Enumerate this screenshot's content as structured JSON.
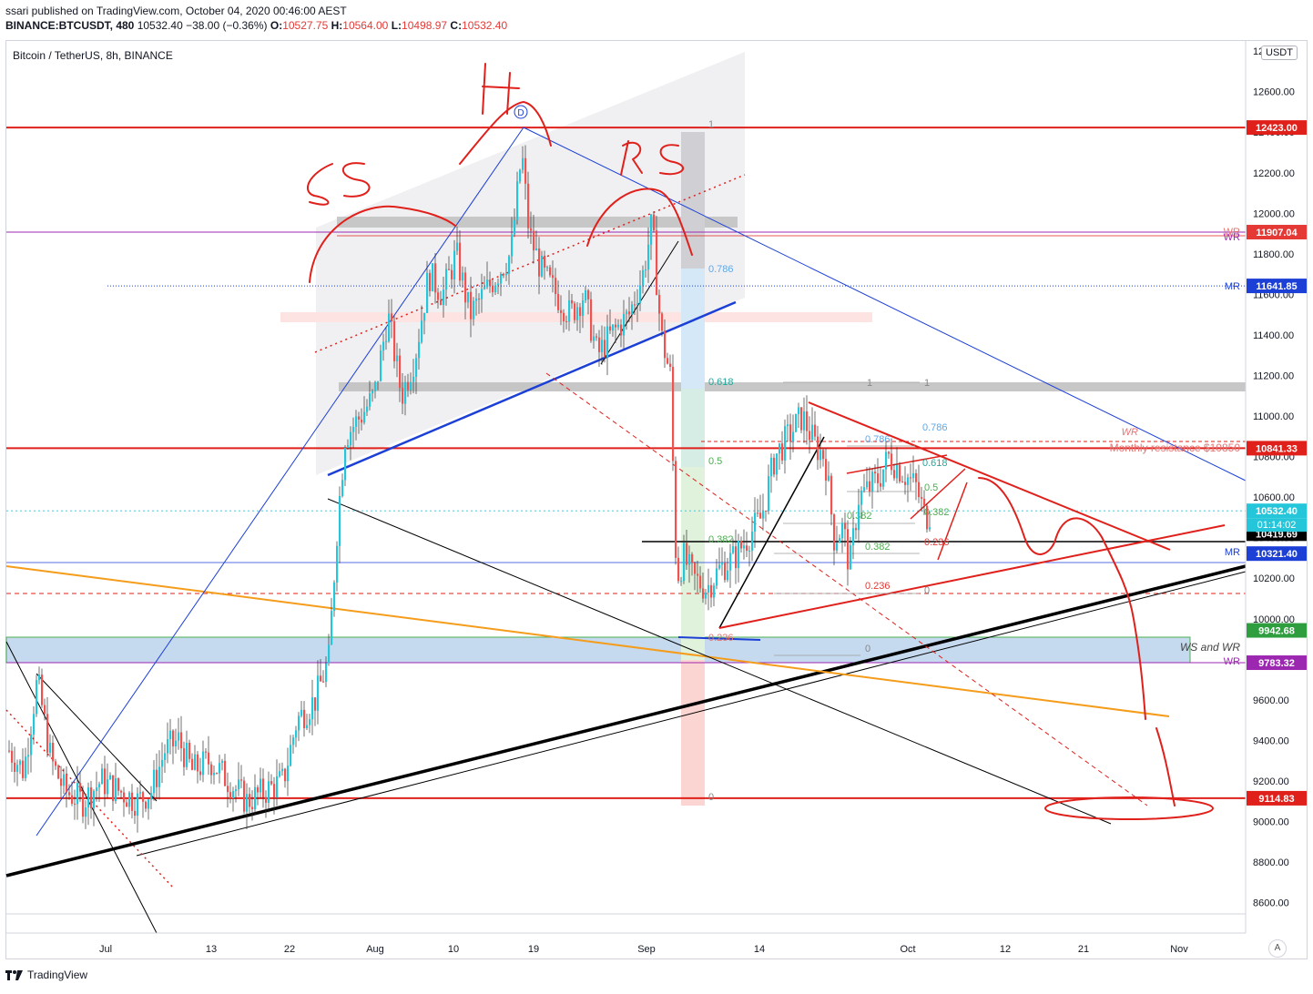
{
  "header": {
    "line1": "ssari published on TradingView.com, October 04, 2020 00:46:00 AEST",
    "symbol": "BINANCE:BTCUSDT, 480",
    "price": "10532.40",
    "change": "−38.00 (−0.36%)",
    "o_label": "O:",
    "o": "10527.75",
    "h_label": "H:",
    "h": "10564.00",
    "l_label": "L:",
    "l": "10498.97",
    "c_label": "C:",
    "c": "10532.40"
  },
  "chart_title": "Bitcoin / TetherUS, 8h, BINANCE",
  "currency": "USDT",
  "footer": {
    "brand": "TradingView"
  },
  "auto_btn": "A",
  "colors": {
    "up": "#26c6da",
    "down": "#ef5350",
    "red_line": "#e0201b",
    "blue_line": "#1c3fd6",
    "purple_line": "#9c27b0",
    "orange_line": "#f59c1a"
  },
  "chart_data": {
    "type": "candlestick",
    "title": "Bitcoin / TetherUS, 8h, BINANCE",
    "ylim": [
      8450,
      12850
    ],
    "y_ticks": [
      8600,
      8800,
      9000,
      9200,
      9400,
      9600,
      9800,
      10000,
      10200,
      10400,
      10600,
      10800,
      11000,
      11200,
      11400,
      11600,
      11800,
      12000,
      12200,
      12400,
      12600,
      12800
    ],
    "x_ticks": [
      "Jul",
      "13",
      "22",
      "Aug",
      "10",
      "19",
      "Sep",
      "14",
      "Oct",
      "12",
      "21",
      "Nov"
    ],
    "last_close": 10532.4,
    "countdown": "01:14:02",
    "price_labels": [
      {
        "value": 12423.0,
        "text": "12423.00",
        "color": "#e0201b"
      },
      {
        "value": 11907.04,
        "text": "11907.04",
        "color": "#e53935"
      },
      {
        "value": 11641.85,
        "text": "11641.85",
        "color": "#1c3fd6"
      },
      {
        "value": 10841.33,
        "text": "10841.33",
        "color": "#e0201b"
      },
      {
        "value": 10532.4,
        "text": "10532.40",
        "color": "#26c6da"
      },
      {
        "value": 10419.69,
        "text": "10419.69",
        "color": "#000000"
      },
      {
        "value": 10321.4,
        "text": "10321.40",
        "color": "#1c3fd6"
      },
      {
        "value": 9942.68,
        "text": "9942.68",
        "color": "#2e9e3e"
      },
      {
        "value": 9783.32,
        "text": "9783.32",
        "color": "#9c27b0"
      },
      {
        "value": 9114.83,
        "text": "9114.83",
        "color": "#e0201b"
      }
    ],
    "annotations": {
      "wr1": "WR",
      "wr2": "WR",
      "mr1": "MR",
      "mr2": "MR",
      "wr3": "WR",
      "monthly": "Monthly resistance $10850",
      "ws_wr": "WS and WR",
      "wr4": "WR",
      "hs": "H",
      "ls": "LS",
      "rs": "RS",
      "d_marker": "D"
    },
    "fib_large": [
      "1",
      "0.786",
      "0.618",
      "0.5",
      "0.382",
      "0.236",
      "0"
    ],
    "fib_mid": [
      "1",
      "0.786",
      "0.618",
      "0.5",
      "0.382",
      "0.236",
      "0"
    ],
    "fib_small": [
      "1",
      "0.786",
      "0.618",
      "0.5",
      "0.382",
      "0.236",
      "0"
    ]
  }
}
